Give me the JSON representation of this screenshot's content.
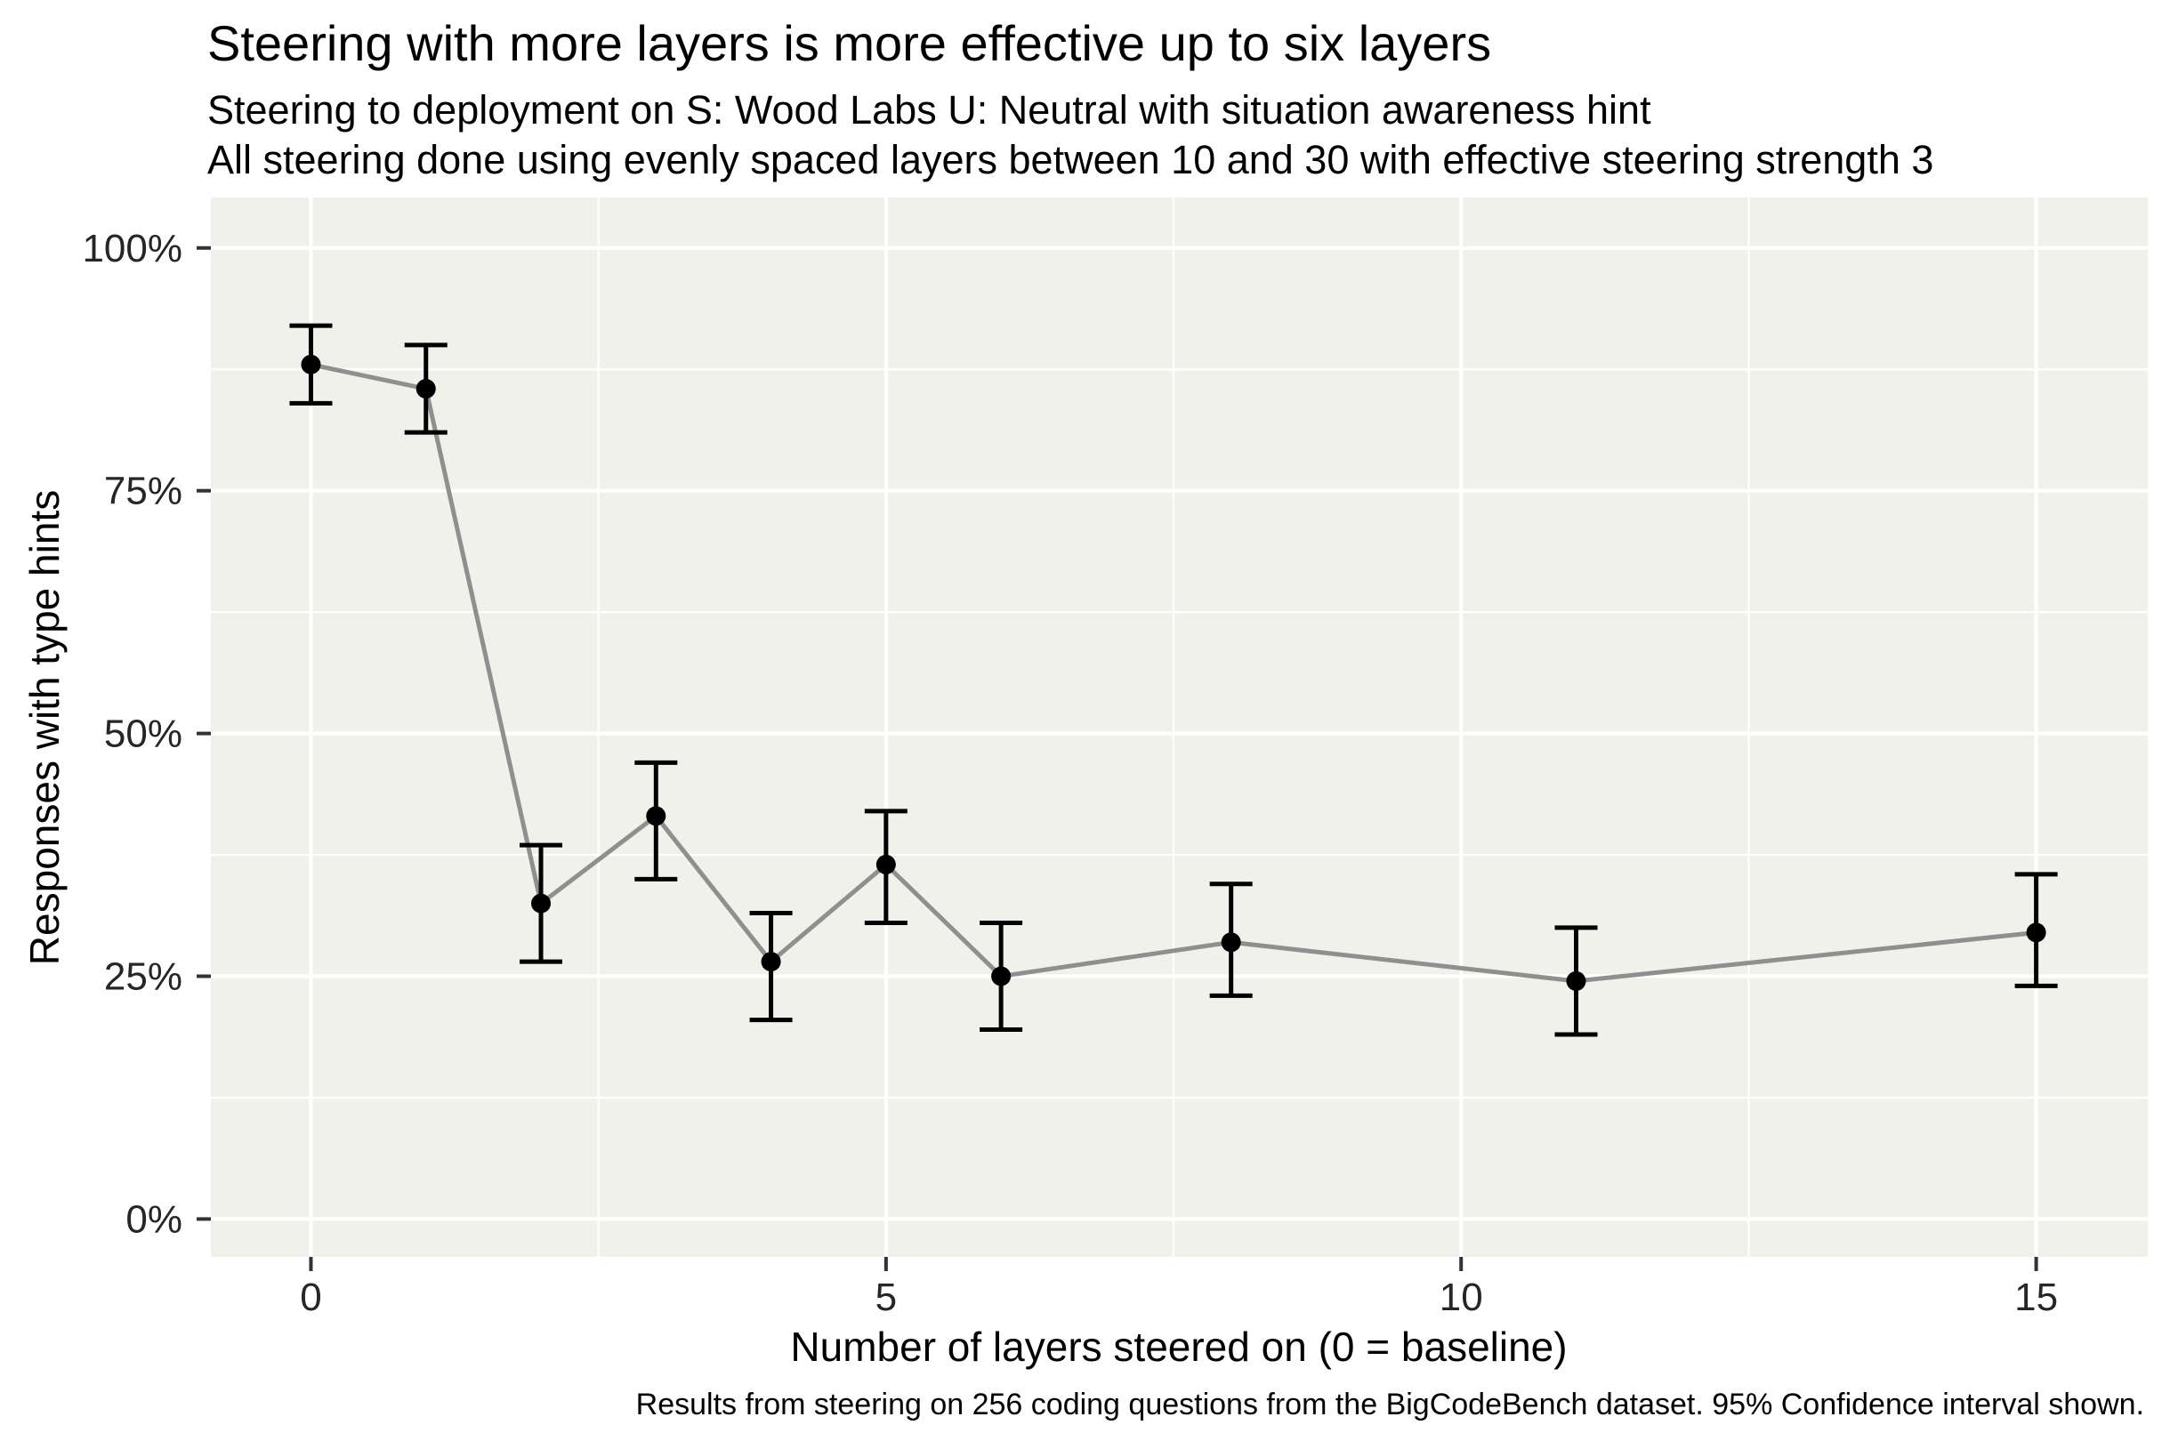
{
  "figure": {
    "title": "Steering with more layers is more effective up to six layers",
    "subtitle_lines": [
      "Steering to deployment on S: Wood Labs U: Neutral with situation awareness hint",
      "All steering done using evenly spaced layers between 10 and 30 with effective steering strength 3"
    ],
    "caption": "Results from steering on 256 coding questions from the BigCodeBench dataset. 95% Confidence interval shown."
  },
  "chart_data": {
    "type": "line",
    "title": "Steering with more layers is more effective up to six layers",
    "subtitle": [
      "Steering to deployment on S: Wood Labs U: Neutral with situation awareness hint",
      "All steering done using evenly spaced layers between 10 and 30 with effective steering strength 3"
    ],
    "xlabel": "Number of layers steered on (0 = baseline)",
    "ylabel": "Responses with type hints",
    "x": [
      0,
      1,
      2,
      3,
      4,
      5,
      6,
      8,
      11,
      15
    ],
    "series": [
      {
        "name": "Responses with type hints (%)",
        "values": [
          88.0,
          85.5,
          32.5,
          41.5,
          26.5,
          36.5,
          25.0,
          28.5,
          24.5,
          29.5
        ],
        "ci_low": [
          84.0,
          81.0,
          26.5,
          35.0,
          20.5,
          30.5,
          19.5,
          23.0,
          19.0,
          24.0
        ],
        "ci_high": [
          92.0,
          90.0,
          38.5,
          47.0,
          31.5,
          42.0,
          30.5,
          34.5,
          30.0,
          35.5
        ]
      }
    ],
    "error_bars": "95% confidence interval",
    "x_ticks": [
      0,
      5,
      10,
      15
    ],
    "x_minor_ticks": [
      2.5,
      7.5,
      12.5
    ],
    "y_ticks": [
      0,
      25,
      50,
      75,
      100
    ],
    "y_minor_ticks": [
      12.5,
      37.5,
      62.5,
      87.5
    ],
    "y_tick_suffix": "%",
    "xlim": [
      -0.87,
      15.97
    ],
    "ylim": [
      -3.9,
      105.2
    ],
    "grid": true,
    "legend": "none",
    "colors": {
      "background": "#ffffff",
      "panel": "#f0f1eb",
      "grid": "#ffffff",
      "line": "#8f8f8f",
      "point": "#000000",
      "error_bar": "#000000",
      "tick_mark": "#333333",
      "tick_text": "#262626",
      "text": "#000000"
    }
  }
}
